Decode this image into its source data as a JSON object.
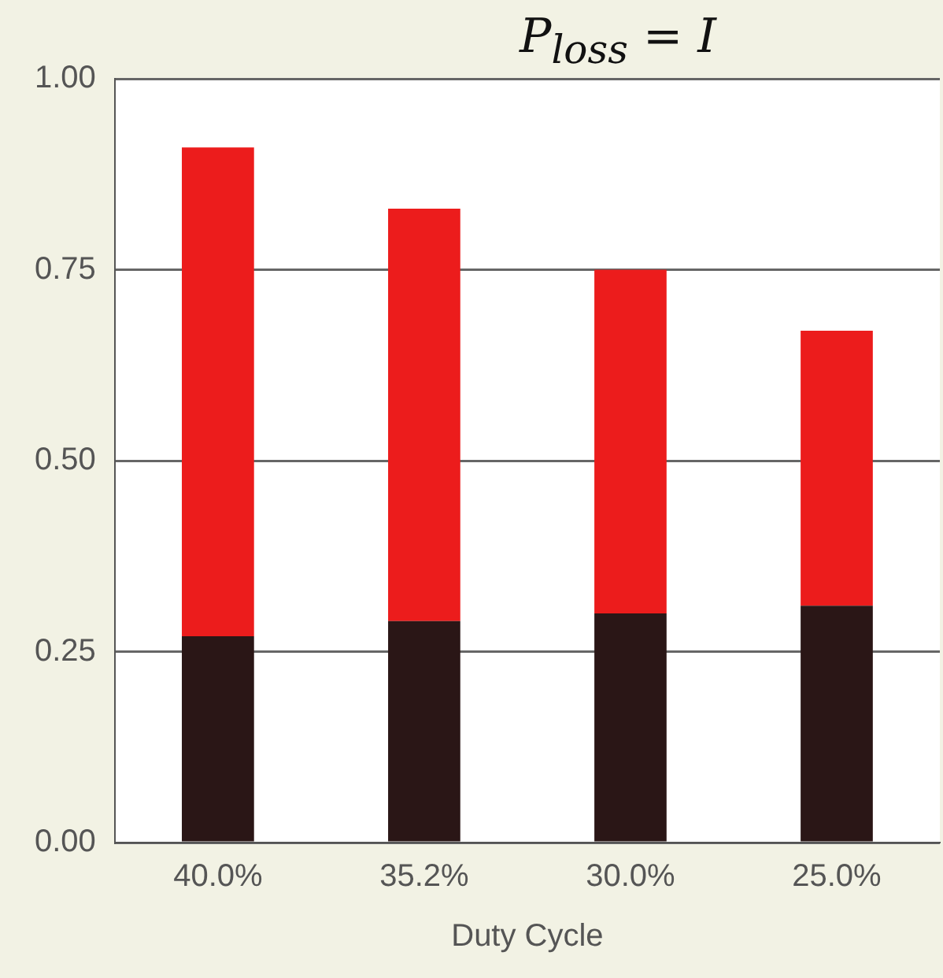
{
  "chart_data": {
    "type": "bar",
    "xlabel": "Duty Cycle",
    "categories": [
      "40.0%",
      "35.2%",
      "30.0%",
      "25.0%"
    ],
    "stacked": true,
    "series": [
      {
        "color": "#2a1616",
        "values": [
          0.27,
          0.29,
          0.3,
          0.31
        ]
      },
      {
        "color": "#ec1c1c",
        "values": [
          0.64,
          0.54,
          0.45,
          0.36
        ]
      }
    ],
    "ylim": [
      0,
      1
    ],
    "yticks": [
      {
        "value": 0,
        "label": "0.00"
      },
      {
        "value": 0.25,
        "label": "0.25"
      },
      {
        "value": 0.5,
        "label": "0.50"
      },
      {
        "value": 0.75,
        "label": "0.75"
      },
      {
        "value": 1,
        "label": "1.00"
      }
    ],
    "grid": "y",
    "legend": false,
    "annotations": [
      "P$_{loss}$ = I"
    ]
  }
}
